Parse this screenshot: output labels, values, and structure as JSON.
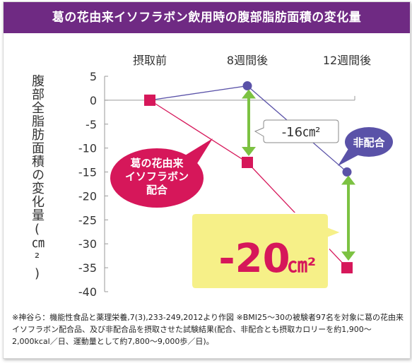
{
  "title": "葛の花由来イソフラボン飲用時の腹部脂肪面積の変化量",
  "chart_data": {
    "type": "line",
    "categories": [
      "摂取前",
      "8週間後",
      "12週間後"
    ],
    "ylabel": "腹部全脂肪面積の変化量(㎝²)",
    "ylim": [
      -40,
      5
    ],
    "yticks": [
      5,
      0,
      -5,
      -10,
      -15,
      -20,
      -25,
      -30,
      -35,
      -40
    ],
    "grid": false,
    "series": [
      {
        "name": "葛の花由来イソフラボン配合",
        "color": "#d6175a",
        "marker": "square",
        "values": [
          0,
          -13,
          -35
        ]
      },
      {
        "name": "非配合",
        "color": "#5a52a8",
        "marker": "circle",
        "values": [
          0,
          3,
          -15
        ]
      }
    ],
    "annotations": {
      "diff_8w": "-16㎝²",
      "diff_12w": "-20㎝²",
      "diff_12w_number": "-20",
      "unit": "㎝²",
      "label_active": "葛の花由来\nイソフラボン\n配合",
      "label_control": "非配合"
    }
  },
  "footnote": "※神谷ら：機能性食品と薬理栄養,7(3),233-249,2012より作図 ※BMI25～30の被験者97名を対象に葛の花由来イソフラボン配合品、及び非配合品を摂取させた試験結果(配合、非配合とも摂取カロリーを約1,900～2,000kcal／日、運動量として約7,800～9,000歩／日)。",
  "colors": {
    "title_bg": "#6f2a83",
    "active": "#d6175a",
    "control": "#5a52a8",
    "arrow": "#7cc242",
    "callout_bg": "#f6f088"
  }
}
